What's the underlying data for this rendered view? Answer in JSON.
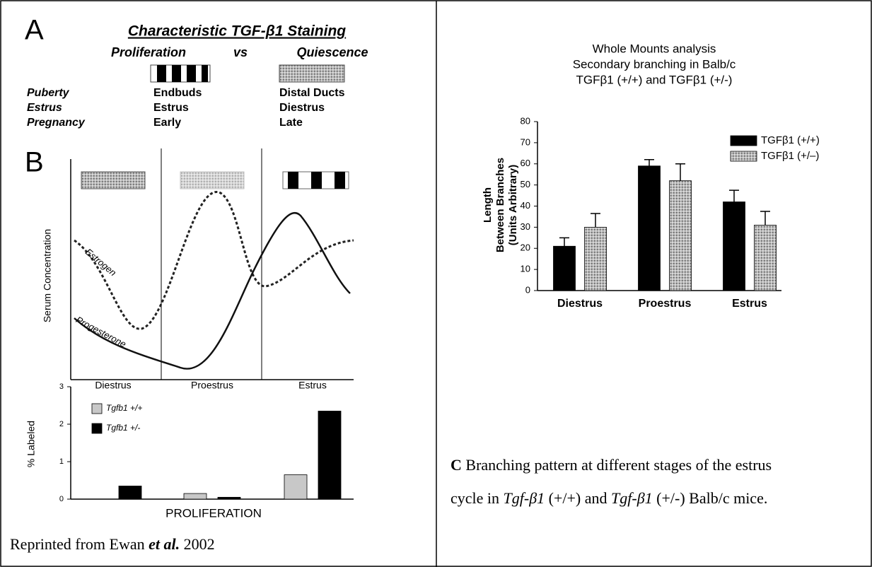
{
  "panel_a": {
    "label": "A",
    "title": "Characteristic  TGF-β1 Staining",
    "col1": "Proliferation",
    "vs": "vs",
    "col2": "Quiescence",
    "rows": [
      [
        "Puberty",
        "Endbuds",
        "Distal Ducts"
      ],
      [
        "Estrus",
        "Estrus",
        "Diestrus"
      ],
      [
        "Pregnancy",
        "Early",
        "Late"
      ]
    ]
  },
  "panel_b": {
    "label": "B",
    "y_label": "Serum Concentration",
    "curve_labels": [
      "Estrogen",
      "Progesterone"
    ]
  },
  "chart_data": [
    {
      "type": "bar",
      "ylabel": "% Labeled",
      "xlabel": "PROLIFERATION",
      "categories": [
        "Diestrus",
        "Proestrus",
        "Estrus"
      ],
      "series": [
        {
          "name": "Tgfb1 +/+",
          "color": "#c8c8c8",
          "values": [
            0,
            0.15,
            0.65
          ]
        },
        {
          "name": "Tgfb1 +/-",
          "color": "#000000",
          "values": [
            0.35,
            0.05,
            2.35
          ]
        }
      ],
      "ylim": [
        0,
        3
      ],
      "yticks": [
        0,
        1,
        2,
        3
      ]
    },
    {
      "type": "bar",
      "title_lines": [
        "Whole Mounts analysis",
        "Secondary branching in Balb/c",
        "TGFβ1 (+/+) and TGFβ1 (+/-)"
      ],
      "ylabel_lines": [
        "Length",
        "Between Branches",
        "(Units Arbitrary)"
      ],
      "categories": [
        "Diestrus",
        "Proestrus",
        "Estrus"
      ],
      "series": [
        {
          "name": "TGFβ1 (+/+)",
          "color": "#000000",
          "values": [
            21,
            59,
            42
          ],
          "errors": [
            4,
            3,
            5.5
          ]
        },
        {
          "name": "TGFβ1 (+/–)",
          "color": "#bdbdbd",
          "values": [
            30,
            52,
            31
          ],
          "errors": [
            6.5,
            8,
            6.5
          ]
        }
      ],
      "ylim": [
        0,
        80
      ],
      "yticks": [
        0,
        10,
        20,
        30,
        40,
        50,
        60,
        70,
        80
      ]
    }
  ],
  "caption_c": {
    "label": "C",
    "line1": " Branching pattern at different stages of the estrus",
    "line2": [
      "cycle in ",
      "Tgf-β1",
      " (+/+) and ",
      "Tgf-β1",
      " (+/-)  Balb/c mice."
    ]
  },
  "footnote": [
    "Reprinted from Ewan ",
    "et al.",
    " 2002"
  ]
}
